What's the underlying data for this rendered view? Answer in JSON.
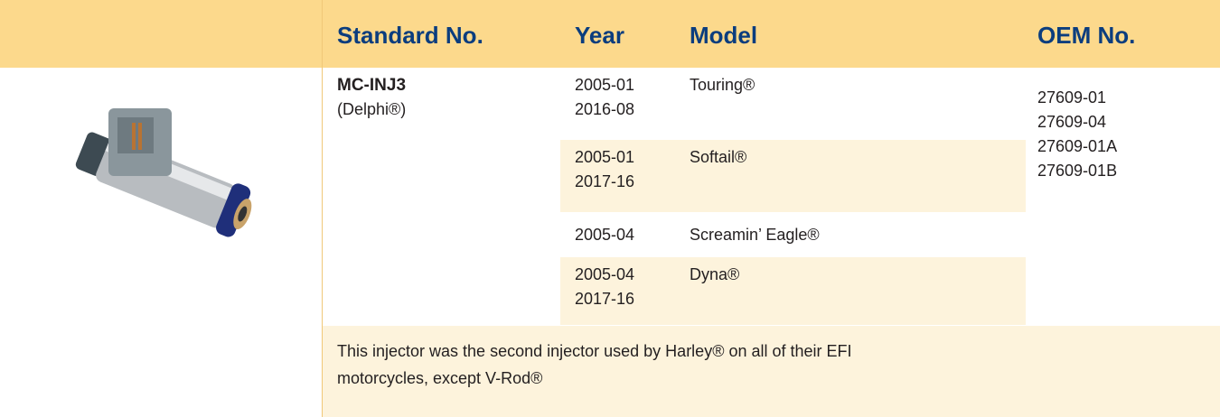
{
  "table": {
    "headers": [
      "Standard No.",
      "Year",
      "Model",
      "OEM No."
    ],
    "part": {
      "number": "MC-INJ3",
      "brand": "(Delphi®)"
    },
    "applications": [
      {
        "years": [
          "2005-01",
          "2016-08"
        ],
        "model": "Touring®"
      },
      {
        "years": [
          "2005-01",
          "2017-16"
        ],
        "model": "Softail®"
      },
      {
        "years": [
          "2005-04"
        ],
        "model": "Screamin’ Eagle®"
      },
      {
        "years": [
          "2005-04",
          "2017-16"
        ],
        "model": "Dyna®"
      }
    ],
    "oem_numbers": [
      "27609-01",
      "27609-04",
      "27609-01A",
      "27609-01B"
    ],
    "note": "This injector was the second injector used by Harley® on all of their EFI motorcycles, except V-Rod®"
  }
}
